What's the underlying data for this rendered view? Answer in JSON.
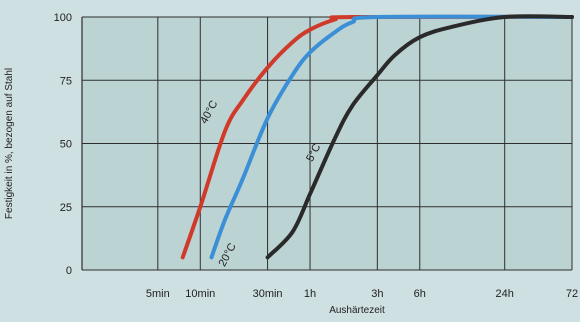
{
  "chart_data": {
    "type": "line",
    "title": "",
    "xlabel": "Aushärtezeit",
    "ylabel": "Festigkeit in %, bezogen auf Stahl",
    "x_scale": "log",
    "x_ticks": [
      "5min",
      "10min",
      "30min",
      "1h",
      "3h",
      "6h",
      "24h",
      "72"
    ],
    "y_ticks": [
      0,
      25,
      50,
      75,
      100
    ],
    "ylim": [
      0,
      100
    ],
    "grid": true,
    "colors": {
      "40°C": "#d03a2a",
      "20°C": "#3a8fd6",
      "5°C": "#2a2a2a"
    },
    "series": [
      {
        "name": "40°C",
        "points": [
          [
            "7.5min",
            5
          ],
          [
            "10min",
            25
          ],
          [
            "15min",
            55
          ],
          [
            "20min",
            67
          ],
          [
            "30min",
            80
          ],
          [
            "45min",
            90
          ],
          [
            "1h",
            95
          ],
          [
            "1.5h",
            99
          ],
          [
            "2h",
            100
          ],
          [
            "72h",
            100
          ]
        ]
      },
      {
        "name": "20°C",
        "points": [
          [
            "12min",
            5
          ],
          [
            "15min",
            20
          ],
          [
            "20min",
            36
          ],
          [
            "30min",
            60
          ],
          [
            "45min",
            77
          ],
          [
            "1h",
            86
          ],
          [
            "1.5h",
            94
          ],
          [
            "2h",
            98
          ],
          [
            "3h",
            100
          ],
          [
            "72h",
            100
          ]
        ]
      },
      {
        "name": "5°C",
        "points": [
          [
            "30min",
            5
          ],
          [
            "45min",
            15
          ],
          [
            "1h",
            30
          ],
          [
            "1.5h",
            52
          ],
          [
            "2h",
            65
          ],
          [
            "3h",
            77
          ],
          [
            "4h",
            85
          ],
          [
            "6h",
            92
          ],
          [
            "10h",
            96
          ],
          [
            "24h",
            100
          ],
          [
            "72h",
            100
          ]
        ]
      }
    ]
  }
}
